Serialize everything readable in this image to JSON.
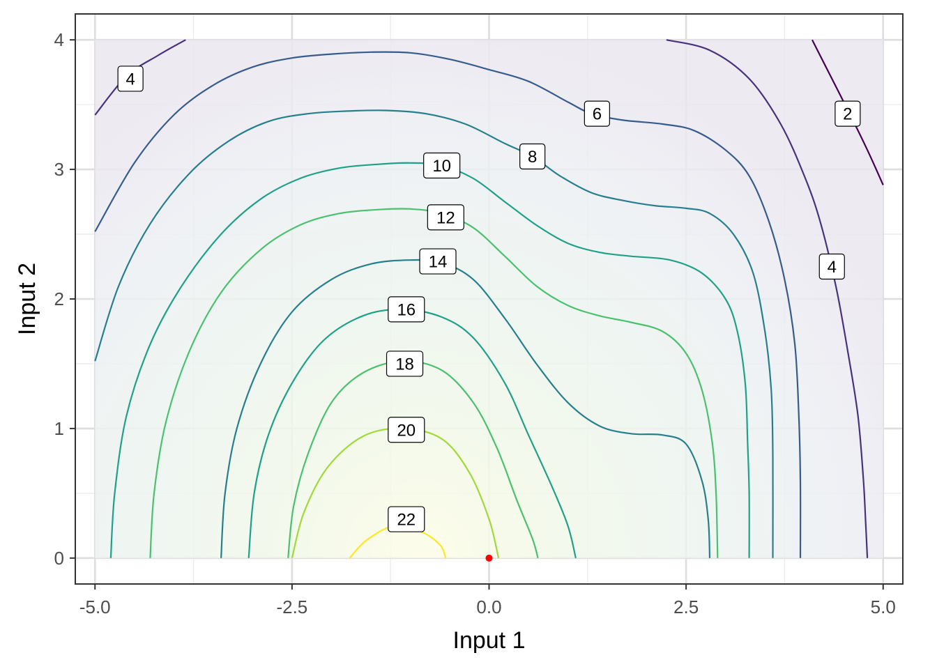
{
  "chart_data": {
    "type": "contour",
    "title": "",
    "xlabel": "Input 1",
    "ylabel": "Input 2",
    "xlim": [
      -5.25,
      5.25
    ],
    "ylim": [
      -0.2,
      4.2
    ],
    "x_ticks": [
      -5.0,
      -2.5,
      0.0,
      2.5,
      5.0
    ],
    "x_tick_labels": [
      "-5.0",
      "-2.5",
      "0.0",
      "2.5",
      "5.0"
    ],
    "y_ticks": [
      0,
      1,
      2,
      3,
      4
    ],
    "y_tick_labels": [
      "0",
      "1",
      "2",
      "3",
      "4"
    ],
    "x_minor": [
      -3.75,
      -1.25,
      1.25,
      3.75
    ],
    "y_minor": [
      0.5,
      1.5,
      2.5,
      3.5
    ],
    "grid": true,
    "legend": "none",
    "domain": {
      "x": [
        -5,
        5
      ],
      "y": [
        0,
        4
      ]
    },
    "fill_max_location": [
      -1.0,
      0.0
    ],
    "point": {
      "x": 0.0,
      "y": 0.0,
      "color": "#ff0000"
    },
    "contours": [
      {
        "level": 2,
        "color": "#440154",
        "segments": [
          {
            "points": [
              [
                4.1,
                4.0
              ],
              [
                4.35,
                3.7
              ],
              [
                4.6,
                3.4
              ],
              [
                4.8,
                3.15
              ],
              [
                5.0,
                2.88
              ]
            ],
            "label_at": [
              4.55,
              3.43
            ],
            "label": "2"
          }
        ]
      },
      {
        "level": 4,
        "color": "#46327e",
        "segments": [
          {
            "points": [
              [
                -5.0,
                3.42
              ],
              [
                -4.6,
                3.72
              ],
              [
                -4.2,
                3.88
              ],
              [
                -3.85,
                4.0
              ]
            ],
            "label_at": [
              -4.55,
              3.7
            ],
            "label": "4"
          },
          {
            "points": [
              [
                2.25,
                4.0
              ],
              [
                2.8,
                3.92
              ],
              [
                3.3,
                3.7
              ],
              [
                3.7,
                3.35
              ],
              [
                4.0,
                2.95
              ],
              [
                4.2,
                2.6
              ],
              [
                4.4,
                2.1
              ],
              [
                4.55,
                1.6
              ],
              [
                4.68,
                1.1
              ],
              [
                4.75,
                0.6
              ],
              [
                4.78,
                0.25
              ],
              [
                4.8,
                0.0
              ]
            ],
            "label_at": [
              4.35,
              2.25
            ],
            "label": "4"
          }
        ]
      },
      {
        "level": 6,
        "color": "#365c8d",
        "segments": [
          {
            "points": [
              [
                -5.0,
                2.52
              ],
              [
                -4.5,
                3.05
              ],
              [
                -4.0,
                3.42
              ],
              [
                -3.5,
                3.65
              ],
              [
                -3.0,
                3.79
              ],
              [
                -2.5,
                3.86
              ],
              [
                -2.0,
                3.89
              ],
              [
                -1.5,
                3.905
              ],
              [
                -1.0,
                3.9
              ],
              [
                -0.5,
                3.85
              ],
              [
                0.0,
                3.77
              ],
              [
                0.5,
                3.68
              ],
              [
                1.0,
                3.52
              ],
              [
                1.3,
                3.43
              ],
              [
                1.7,
                3.38
              ],
              [
                2.2,
                3.35
              ],
              [
                2.6,
                3.3
              ],
              [
                3.0,
                3.15
              ],
              [
                3.3,
                2.95
              ],
              [
                3.55,
                2.6
              ],
              [
                3.75,
                2.15
              ],
              [
                3.88,
                1.65
              ],
              [
                3.93,
                1.1
              ],
              [
                3.95,
                0.6
              ],
              [
                3.95,
                0.0
              ]
            ],
            "label_at": [
              1.37,
              3.43
            ],
            "label": "6"
          }
        ]
      },
      {
        "level": 8,
        "color": "#277f8e",
        "segments": [
          {
            "points": [
              [
                -5.0,
                1.52
              ],
              [
                -4.7,
                2.1
              ],
              [
                -4.3,
                2.58
              ],
              [
                -3.8,
                2.97
              ],
              [
                -3.3,
                3.22
              ],
              [
                -2.8,
                3.37
              ],
              [
                -2.3,
                3.43
              ],
              [
                -1.8,
                3.45
              ],
              [
                -1.3,
                3.455
              ],
              [
                -0.8,
                3.43
              ],
              [
                -0.3,
                3.35
              ],
              [
                0.2,
                3.2
              ],
              [
                0.55,
                3.1
              ],
              [
                0.9,
                2.95
              ],
              [
                1.3,
                2.82
              ],
              [
                1.7,
                2.76
              ],
              [
                2.1,
                2.72
              ],
              [
                2.5,
                2.7
              ],
              [
                2.8,
                2.66
              ],
              [
                3.1,
                2.5
              ],
              [
                3.35,
                2.2
              ],
              [
                3.5,
                1.75
              ],
              [
                3.58,
                1.3
              ],
              [
                3.6,
                0.8
              ],
              [
                3.6,
                0.0
              ]
            ],
            "label_at": [
              0.55,
              3.1
            ],
            "label": "8"
          }
        ]
      },
      {
        "level": 10,
        "color": "#1fa187",
        "segments": [
          {
            "points": [
              [
                -4.8,
                0.0
              ],
              [
                -4.75,
                0.5
              ],
              [
                -4.6,
                1.1
              ],
              [
                -4.3,
                1.65
              ],
              [
                -3.9,
                2.1
              ],
              [
                -3.4,
                2.5
              ],
              [
                -2.9,
                2.77
              ],
              [
                -2.4,
                2.93
              ],
              [
                -1.9,
                3.01
              ],
              [
                -1.4,
                3.04
              ],
              [
                -1.0,
                3.05
              ],
              [
                -0.6,
                3.03
              ],
              [
                -0.2,
                2.93
              ],
              [
                0.2,
                2.75
              ],
              [
                0.6,
                2.57
              ],
              [
                1.0,
                2.43
              ],
              [
                1.4,
                2.36
              ],
              [
                1.8,
                2.33
              ],
              [
                2.3,
                2.3
              ],
              [
                2.7,
                2.2
              ],
              [
                3.0,
                2.0
              ],
              [
                3.15,
                1.75
              ],
              [
                3.25,
                1.35
              ],
              [
                3.28,
                0.9
              ],
              [
                3.3,
                0.5
              ],
              [
                3.3,
                0.0
              ]
            ],
            "label_at": [
              -0.6,
              3.03
            ],
            "label": "10"
          }
        ]
      },
      {
        "level": 12,
        "color": "#4ac16d",
        "segments": [
          {
            "points": [
              [
                -4.3,
                0.0
              ],
              [
                -4.25,
                0.5
              ],
              [
                -4.1,
                1.05
              ],
              [
                -3.8,
                1.6
              ],
              [
                -3.4,
                2.05
              ],
              [
                -2.9,
                2.38
              ],
              [
                -2.4,
                2.57
              ],
              [
                -1.9,
                2.66
              ],
              [
                -1.4,
                2.69
              ],
              [
                -1.0,
                2.695
              ],
              [
                -0.6,
                2.66
              ],
              [
                -0.2,
                2.55
              ],
              [
                0.2,
                2.33
              ],
              [
                0.6,
                2.1
              ],
              [
                1.0,
                1.95
              ],
              [
                1.4,
                1.87
              ],
              [
                1.8,
                1.82
              ],
              [
                2.2,
                1.75
              ],
              [
                2.5,
                1.58
              ],
              [
                2.7,
                1.3
              ],
              [
                2.83,
                0.9
              ],
              [
                2.88,
                0.5
              ],
              [
                2.9,
                0.0
              ]
            ],
            "label_at": [
              -0.55,
              2.63
            ],
            "label": "12"
          }
        ]
      },
      {
        "level": 14,
        "color": "#277f8e",
        "segments": [
          {
            "points": [
              [
                -3.4,
                0.0
              ],
              [
                -3.35,
                0.5
              ],
              [
                -3.2,
                1.0
              ],
              [
                -2.9,
                1.5
              ],
              [
                -2.5,
                1.9
              ],
              [
                -2.0,
                2.15
              ],
              [
                -1.5,
                2.27
              ],
              [
                -1.0,
                2.3
              ],
              [
                -0.6,
                2.28
              ],
              [
                -0.2,
                2.15
              ],
              [
                0.2,
                1.85
              ],
              [
                0.6,
                1.5
              ],
              [
                1.0,
                1.2
              ],
              [
                1.4,
                1.02
              ],
              [
                1.8,
                0.96
              ],
              [
                2.2,
                0.95
              ],
              [
                2.5,
                0.88
              ],
              [
                2.7,
                0.6
              ],
              [
                2.78,
                0.3
              ],
              [
                2.8,
                0.0
              ]
            ],
            "label_at": [
              -0.65,
              2.29
            ],
            "label": "14"
          }
        ]
      },
      {
        "level": 16,
        "color": "#1fa187",
        "segments": [
          {
            "points": [
              [
                -3.05,
                0.0
              ],
              [
                -2.98,
                0.5
              ],
              [
                -2.8,
                0.95
              ],
              [
                -2.5,
                1.35
              ],
              [
                -2.1,
                1.68
              ],
              [
                -1.6,
                1.87
              ],
              [
                -1.1,
                1.92
              ],
              [
                -0.6,
                1.86
              ],
              [
                -0.2,
                1.7
              ],
              [
                0.2,
                1.35
              ],
              [
                0.5,
                0.95
              ],
              [
                0.8,
                0.55
              ],
              [
                1.0,
                0.25
              ],
              [
                1.1,
                0.0
              ]
            ],
            "label_at": [
              -1.05,
              1.92
            ],
            "label": "16"
          }
        ]
      },
      {
        "level": 18,
        "color": "#4ac16d",
        "segments": [
          {
            "points": [
              [
                -2.55,
                0.0
              ],
              [
                -2.48,
                0.4
              ],
              [
                -2.3,
                0.8
              ],
              [
                -2.0,
                1.2
              ],
              [
                -1.6,
                1.43
              ],
              [
                -1.1,
                1.52
              ],
              [
                -0.6,
                1.45
              ],
              [
                -0.2,
                1.2
              ],
              [
                0.1,
                0.85
              ],
              [
                0.35,
                0.45
              ],
              [
                0.55,
                0.15
              ],
              [
                0.62,
                0.0
              ]
            ],
            "label_at": [
              -1.07,
              1.5
            ],
            "label": "18"
          }
        ]
      },
      {
        "level": 20,
        "color": "#a0da39",
        "segments": [
          {
            "points": [
              [
                -2.5,
                0.0
              ],
              [
                -2.35,
                0.35
              ],
              [
                -2.05,
                0.7
              ],
              [
                -1.6,
                0.94
              ],
              [
                -1.1,
                1.0
              ],
              [
                -0.6,
                0.92
              ],
              [
                -0.25,
                0.66
              ],
              [
                0.0,
                0.3
              ],
              [
                0.12,
                0.0
              ]
            ],
            "label_at": [
              -1.05,
              0.99
            ],
            "label": "20"
          }
        ]
      },
      {
        "level": 22,
        "color": "#fde725",
        "segments": [
          {
            "points": [
              [
                -1.77,
                0.0
              ],
              [
                -1.55,
                0.14
              ],
              [
                -1.2,
                0.25
              ],
              [
                -0.85,
                0.2
              ],
              [
                -0.62,
                0.1
              ],
              [
                -0.55,
                0.0
              ]
            ],
            "label_at": [
              -1.05,
              0.3
            ],
            "label": "22"
          }
        ]
      }
    ]
  }
}
